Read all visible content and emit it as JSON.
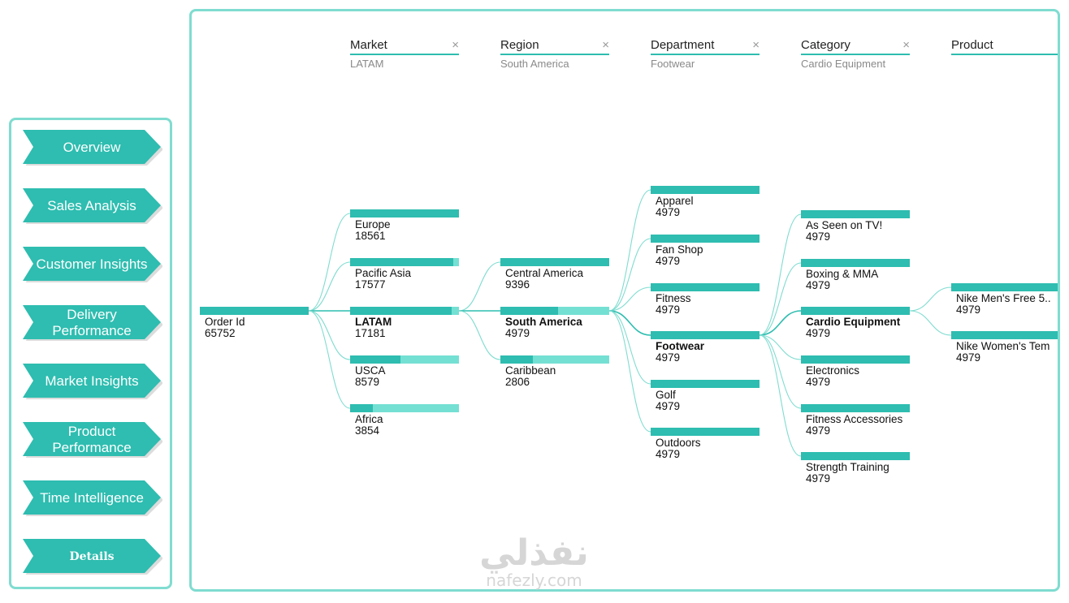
{
  "nav": {
    "items": [
      {
        "label": "Overview"
      },
      {
        "label": "Sales Analysis"
      },
      {
        "label": "Customer Insights"
      },
      {
        "label": "Delivery Performance"
      },
      {
        "label": "Market Insights"
      },
      {
        "label": "Product Performance"
      },
      {
        "label": "Time Intelligence"
      },
      {
        "label": "Details"
      }
    ]
  },
  "tree": {
    "levels": [
      {
        "title": "Market",
        "filter": "LATAM"
      },
      {
        "title": "Region",
        "filter": "South America"
      },
      {
        "title": "Department",
        "filter": "Footwear"
      },
      {
        "title": "Category",
        "filter": "Cardio Equipment"
      },
      {
        "title": "Product",
        "filter": ""
      }
    ],
    "close_symbol": "×",
    "root": {
      "label": "Order Id",
      "value": "65752",
      "fill": 1.0
    },
    "market": [
      {
        "label": "Europe",
        "value": "18561",
        "fill": 1.0
      },
      {
        "label": "Pacific Asia",
        "value": "17577",
        "fill": 0.95
      },
      {
        "label": "LATAM",
        "value": "17181",
        "fill": 0.93,
        "selected": true
      },
      {
        "label": "USCA",
        "value": "8579",
        "fill": 0.46
      },
      {
        "label": "Africa",
        "value": "3854",
        "fill": 0.21
      }
    ],
    "region": [
      {
        "label": "Central America",
        "value": "9396",
        "fill": 1.0
      },
      {
        "label": "South America",
        "value": "4979",
        "fill": 0.53,
        "selected": true
      },
      {
        "label": "Caribbean",
        "value": "2806",
        "fill": 0.3
      }
    ],
    "department": [
      {
        "label": "Apparel",
        "value": "4979",
        "fill": 1.0
      },
      {
        "label": "Fan Shop",
        "value": "4979",
        "fill": 1.0
      },
      {
        "label": "Fitness",
        "value": "4979",
        "fill": 1.0
      },
      {
        "label": "Footwear",
        "value": "4979",
        "fill": 1.0,
        "selected": true
      },
      {
        "label": "Golf",
        "value": "4979",
        "fill": 1.0
      },
      {
        "label": "Outdoors",
        "value": "4979",
        "fill": 1.0
      }
    ],
    "category": [
      {
        "label": "As Seen on TV!",
        "value": "4979",
        "fill": 1.0
      },
      {
        "label": "Boxing & MMA",
        "value": "4979",
        "fill": 1.0
      },
      {
        "label": "Cardio Equipment",
        "value": "4979",
        "fill": 1.0,
        "selected": true
      },
      {
        "label": "Electronics",
        "value": "4979",
        "fill": 1.0
      },
      {
        "label": "Fitness Accessories",
        "value": "4979",
        "fill": 1.0
      },
      {
        "label": "Strength Training",
        "value": "4979",
        "fill": 1.0
      }
    ],
    "product": [
      {
        "label": "Nike Men's Free 5..",
        "value": "4979",
        "fill": 1.0
      },
      {
        "label": "Nike Women's Tem",
        "value": "4979",
        "fill": 1.0
      }
    ]
  },
  "watermark": {
    "arabic": "نفذلي",
    "latin": "nafezly.com"
  },
  "colors": {
    "teal": "#2ebdb0",
    "light_teal": "#74e0d3",
    "border": "#7fdcd0",
    "link": "#7fdcd0"
  }
}
